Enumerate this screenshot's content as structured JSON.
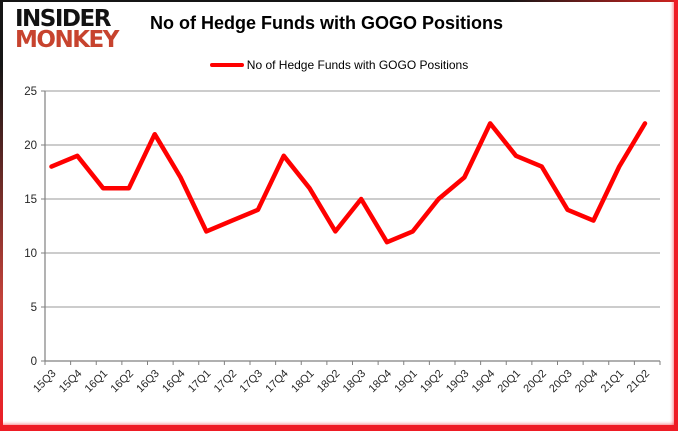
{
  "logo": {
    "line1": "INSIDER",
    "line2": "MONKEY"
  },
  "header": {
    "title": "No of Hedge Funds with GOGO Positions"
  },
  "legend": {
    "label": "No of Hedge Funds with GOGO Positions"
  },
  "colors": {
    "line": "#ff0000",
    "logo_black": "#121212",
    "logo_red": "#c7432e",
    "axis": "#808080",
    "grid": "#9a9a9a",
    "tick_text": "#262626",
    "frame_dark": "#151515",
    "frame_red": "#ee1c25",
    "background": "#ffffff"
  },
  "chart_data": {
    "type": "line",
    "title": "No of Hedge Funds with GOGO Positions",
    "categories": [
      "15Q3",
      "15Q4",
      "16Q1",
      "16Q2",
      "16Q3",
      "16Q4",
      "17Q1",
      "17Q2",
      "17Q3",
      "17Q4",
      "18Q1",
      "18Q2",
      "18Q3",
      "18Q4",
      "19Q1",
      "19Q2",
      "19Q3",
      "19Q4",
      "20Q1",
      "20Q2",
      "20Q3",
      "20Q4",
      "21Q1",
      "21Q2"
    ],
    "series": [
      {
        "name": "No of Hedge Funds with GOGO Positions",
        "values": [
          18,
          19,
          16,
          16,
          21,
          17,
          12,
          13,
          14,
          19,
          16,
          12,
          15,
          11,
          12,
          15,
          17,
          22,
          19,
          18,
          14,
          13,
          18,
          22
        ]
      }
    ],
    "xlabel": "",
    "ylabel": "",
    "ylim": [
      0,
      25
    ],
    "yticks": [
      0,
      5,
      10,
      15,
      20,
      25
    ],
    "grid": true,
    "legend_position": "top-center"
  }
}
